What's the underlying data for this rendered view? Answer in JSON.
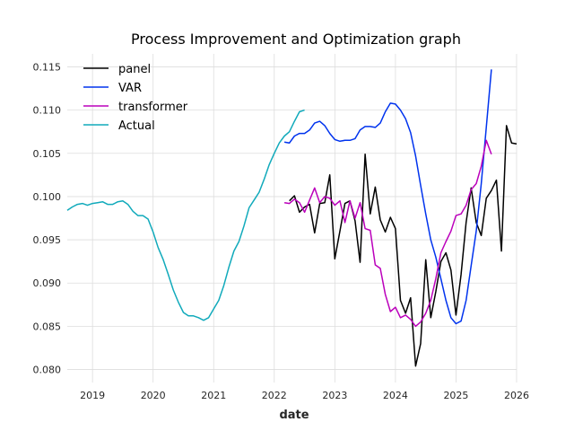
{
  "chart_data": {
    "type": "line",
    "title": "Process Improvement and Optimization graph",
    "xlabel": "date",
    "ylabel": "",
    "xlim": [
      "2018-08-01",
      "2026-01-01"
    ],
    "ylim": [
      0.0785,
      0.1165
    ],
    "x_ticks": [
      "2019",
      "2020",
      "2021",
      "2022",
      "2023",
      "2024",
      "2025",
      "2026"
    ],
    "y_ticks": [
      "0.080",
      "0.085",
      "0.090",
      "0.095",
      "0.100",
      "0.105",
      "0.110",
      "0.115"
    ],
    "grid": true,
    "legend_position": "top-left",
    "series": [
      {
        "name": "panel",
        "color": "#000000",
        "x": [
          "2022-04",
          "2022-05",
          "2022-06",
          "2022-07",
          "2022-08",
          "2022-09",
          "2022-10",
          "2022-11",
          "2022-12",
          "2023-01",
          "2023-02",
          "2023-03",
          "2023-04",
          "2023-05",
          "2023-06",
          "2023-07",
          "2023-08",
          "2023-09",
          "2023-10",
          "2023-11",
          "2023-12",
          "2024-01",
          "2024-02",
          "2024-03",
          "2024-04",
          "2024-05",
          "2024-06",
          "2024-07",
          "2024-08",
          "2024-09",
          "2024-10",
          "2024-11",
          "2024-12",
          "2025-01",
          "2025-02",
          "2025-03",
          "2025-04",
          "2025-05",
          "2025-06",
          "2025-07",
          "2025-08",
          "2025-09",
          "2025-10",
          "2025-11",
          "2025-12",
          "2026-01"
        ],
        "y": [
          0.0995,
          0.1001,
          0.0982,
          0.0988,
          0.0991,
          0.0958,
          0.0992,
          0.0993,
          0.1025,
          0.0928,
          0.096,
          0.0992,
          0.0995,
          0.0972,
          0.0924,
          0.1049,
          0.098,
          0.1011,
          0.0973,
          0.0959,
          0.0976,
          0.0963,
          0.088,
          0.0865,
          0.0883,
          0.0804,
          0.083,
          0.0927,
          0.086,
          0.089,
          0.0925,
          0.0935,
          0.0915,
          0.0863,
          0.091,
          0.097,
          0.101,
          0.097,
          0.0955,
          0.0998,
          0.1007,
          0.1019,
          0.0937,
          0.1082,
          0.1062,
          0.1061
        ]
      },
      {
        "name": "VAR",
        "color": "#0033ee",
        "x": [
          "2022-03",
          "2022-04",
          "2022-05",
          "2022-06",
          "2022-07",
          "2022-08",
          "2022-09",
          "2022-10",
          "2022-11",
          "2022-12",
          "2023-01",
          "2023-02",
          "2023-03",
          "2023-04",
          "2023-05",
          "2023-06",
          "2023-07",
          "2023-08",
          "2023-09",
          "2023-10",
          "2023-11",
          "2023-12",
          "2024-01",
          "2024-02",
          "2024-03",
          "2024-04",
          "2024-05",
          "2024-06",
          "2024-07",
          "2024-08",
          "2024-09",
          "2024-10",
          "2024-11",
          "2024-12",
          "2025-01",
          "2025-02",
          "2025-03",
          "2025-04",
          "2025-05",
          "2025-06",
          "2025-07",
          "2025-08"
        ],
        "y": [
          0.1063,
          0.1062,
          0.107,
          0.1073,
          0.1073,
          0.1077,
          0.1085,
          0.1087,
          0.1082,
          0.1073,
          0.1066,
          0.1064,
          0.1065,
          0.1065,
          0.1067,
          0.1077,
          0.1081,
          0.1081,
          0.108,
          0.1085,
          0.1098,
          0.1108,
          0.1107,
          0.11,
          0.109,
          0.1074,
          0.1047,
          0.1013,
          0.098,
          0.095,
          0.093,
          0.0905,
          0.088,
          0.086,
          0.0853,
          0.0856,
          0.088,
          0.092,
          0.096,
          0.1015,
          0.108,
          0.1147
        ]
      },
      {
        "name": "transformer",
        "color": "#bb00bb",
        "x": [
          "2022-03",
          "2022-04",
          "2022-05",
          "2022-06",
          "2022-07",
          "2022-08",
          "2022-09",
          "2022-10",
          "2022-11",
          "2022-12",
          "2023-01",
          "2023-02",
          "2023-03",
          "2023-04",
          "2023-05",
          "2023-06",
          "2023-07",
          "2023-08",
          "2023-09",
          "2023-10",
          "2023-11",
          "2023-12",
          "2024-01",
          "2024-02",
          "2024-03",
          "2024-04",
          "2024-05",
          "2024-06",
          "2024-07",
          "2024-08",
          "2024-09",
          "2024-10",
          "2024-11",
          "2024-12",
          "2025-01",
          "2025-02",
          "2025-03",
          "2025-04",
          "2025-05",
          "2025-06",
          "2025-07",
          "2025-08"
        ],
        "y": [
          0.0993,
          0.0992,
          0.0997,
          0.0993,
          0.0982,
          0.0996,
          0.101,
          0.0993,
          0.1,
          0.0998,
          0.099,
          0.0995,
          0.097,
          0.0995,
          0.0975,
          0.0993,
          0.0963,
          0.0961,
          0.0921,
          0.0917,
          0.0887,
          0.0867,
          0.0872,
          0.086,
          0.0863,
          0.0858,
          0.085,
          0.0855,
          0.0865,
          0.088,
          0.0905,
          0.0935,
          0.0948,
          0.096,
          0.0978,
          0.098,
          0.099,
          0.1008,
          0.1015,
          0.1035,
          0.1065,
          0.1049
        ]
      },
      {
        "name": "Actual",
        "color": "#11aabb",
        "x": [
          "2018-08",
          "2018-09",
          "2018-10",
          "2018-11",
          "2018-12",
          "2019-01",
          "2019-02",
          "2019-03",
          "2019-04",
          "2019-05",
          "2019-06",
          "2019-07",
          "2019-08",
          "2019-09",
          "2019-10",
          "2019-11",
          "2019-12",
          "2020-01",
          "2020-02",
          "2020-03",
          "2020-04",
          "2020-05",
          "2020-06",
          "2020-07",
          "2020-08",
          "2020-09",
          "2020-10",
          "2020-11",
          "2020-12",
          "2021-01",
          "2021-02",
          "2021-03",
          "2021-04",
          "2021-05",
          "2021-06",
          "2021-07",
          "2021-08",
          "2021-09",
          "2021-10",
          "2021-11",
          "2021-12",
          "2022-01",
          "2022-02",
          "2022-03",
          "2022-04",
          "2022-05",
          "2022-06",
          "2022-07"
        ],
        "y": [
          0.0984,
          0.0988,
          0.0991,
          0.0992,
          0.099,
          0.0992,
          0.0993,
          0.0994,
          0.0991,
          0.0991,
          0.0994,
          0.0995,
          0.0991,
          0.0983,
          0.0978,
          0.0978,
          0.0974,
          0.0959,
          0.0941,
          0.0927,
          0.091,
          0.0892,
          0.0878,
          0.0866,
          0.0862,
          0.0862,
          0.086,
          0.0857,
          0.086,
          0.087,
          0.088,
          0.0897,
          0.0918,
          0.0937,
          0.0948,
          0.0966,
          0.0987,
          0.0996,
          0.1005,
          0.102,
          0.1037,
          0.105,
          0.1062,
          0.107,
          0.1075,
          0.1087,
          0.1098,
          0.11
        ]
      }
    ]
  }
}
